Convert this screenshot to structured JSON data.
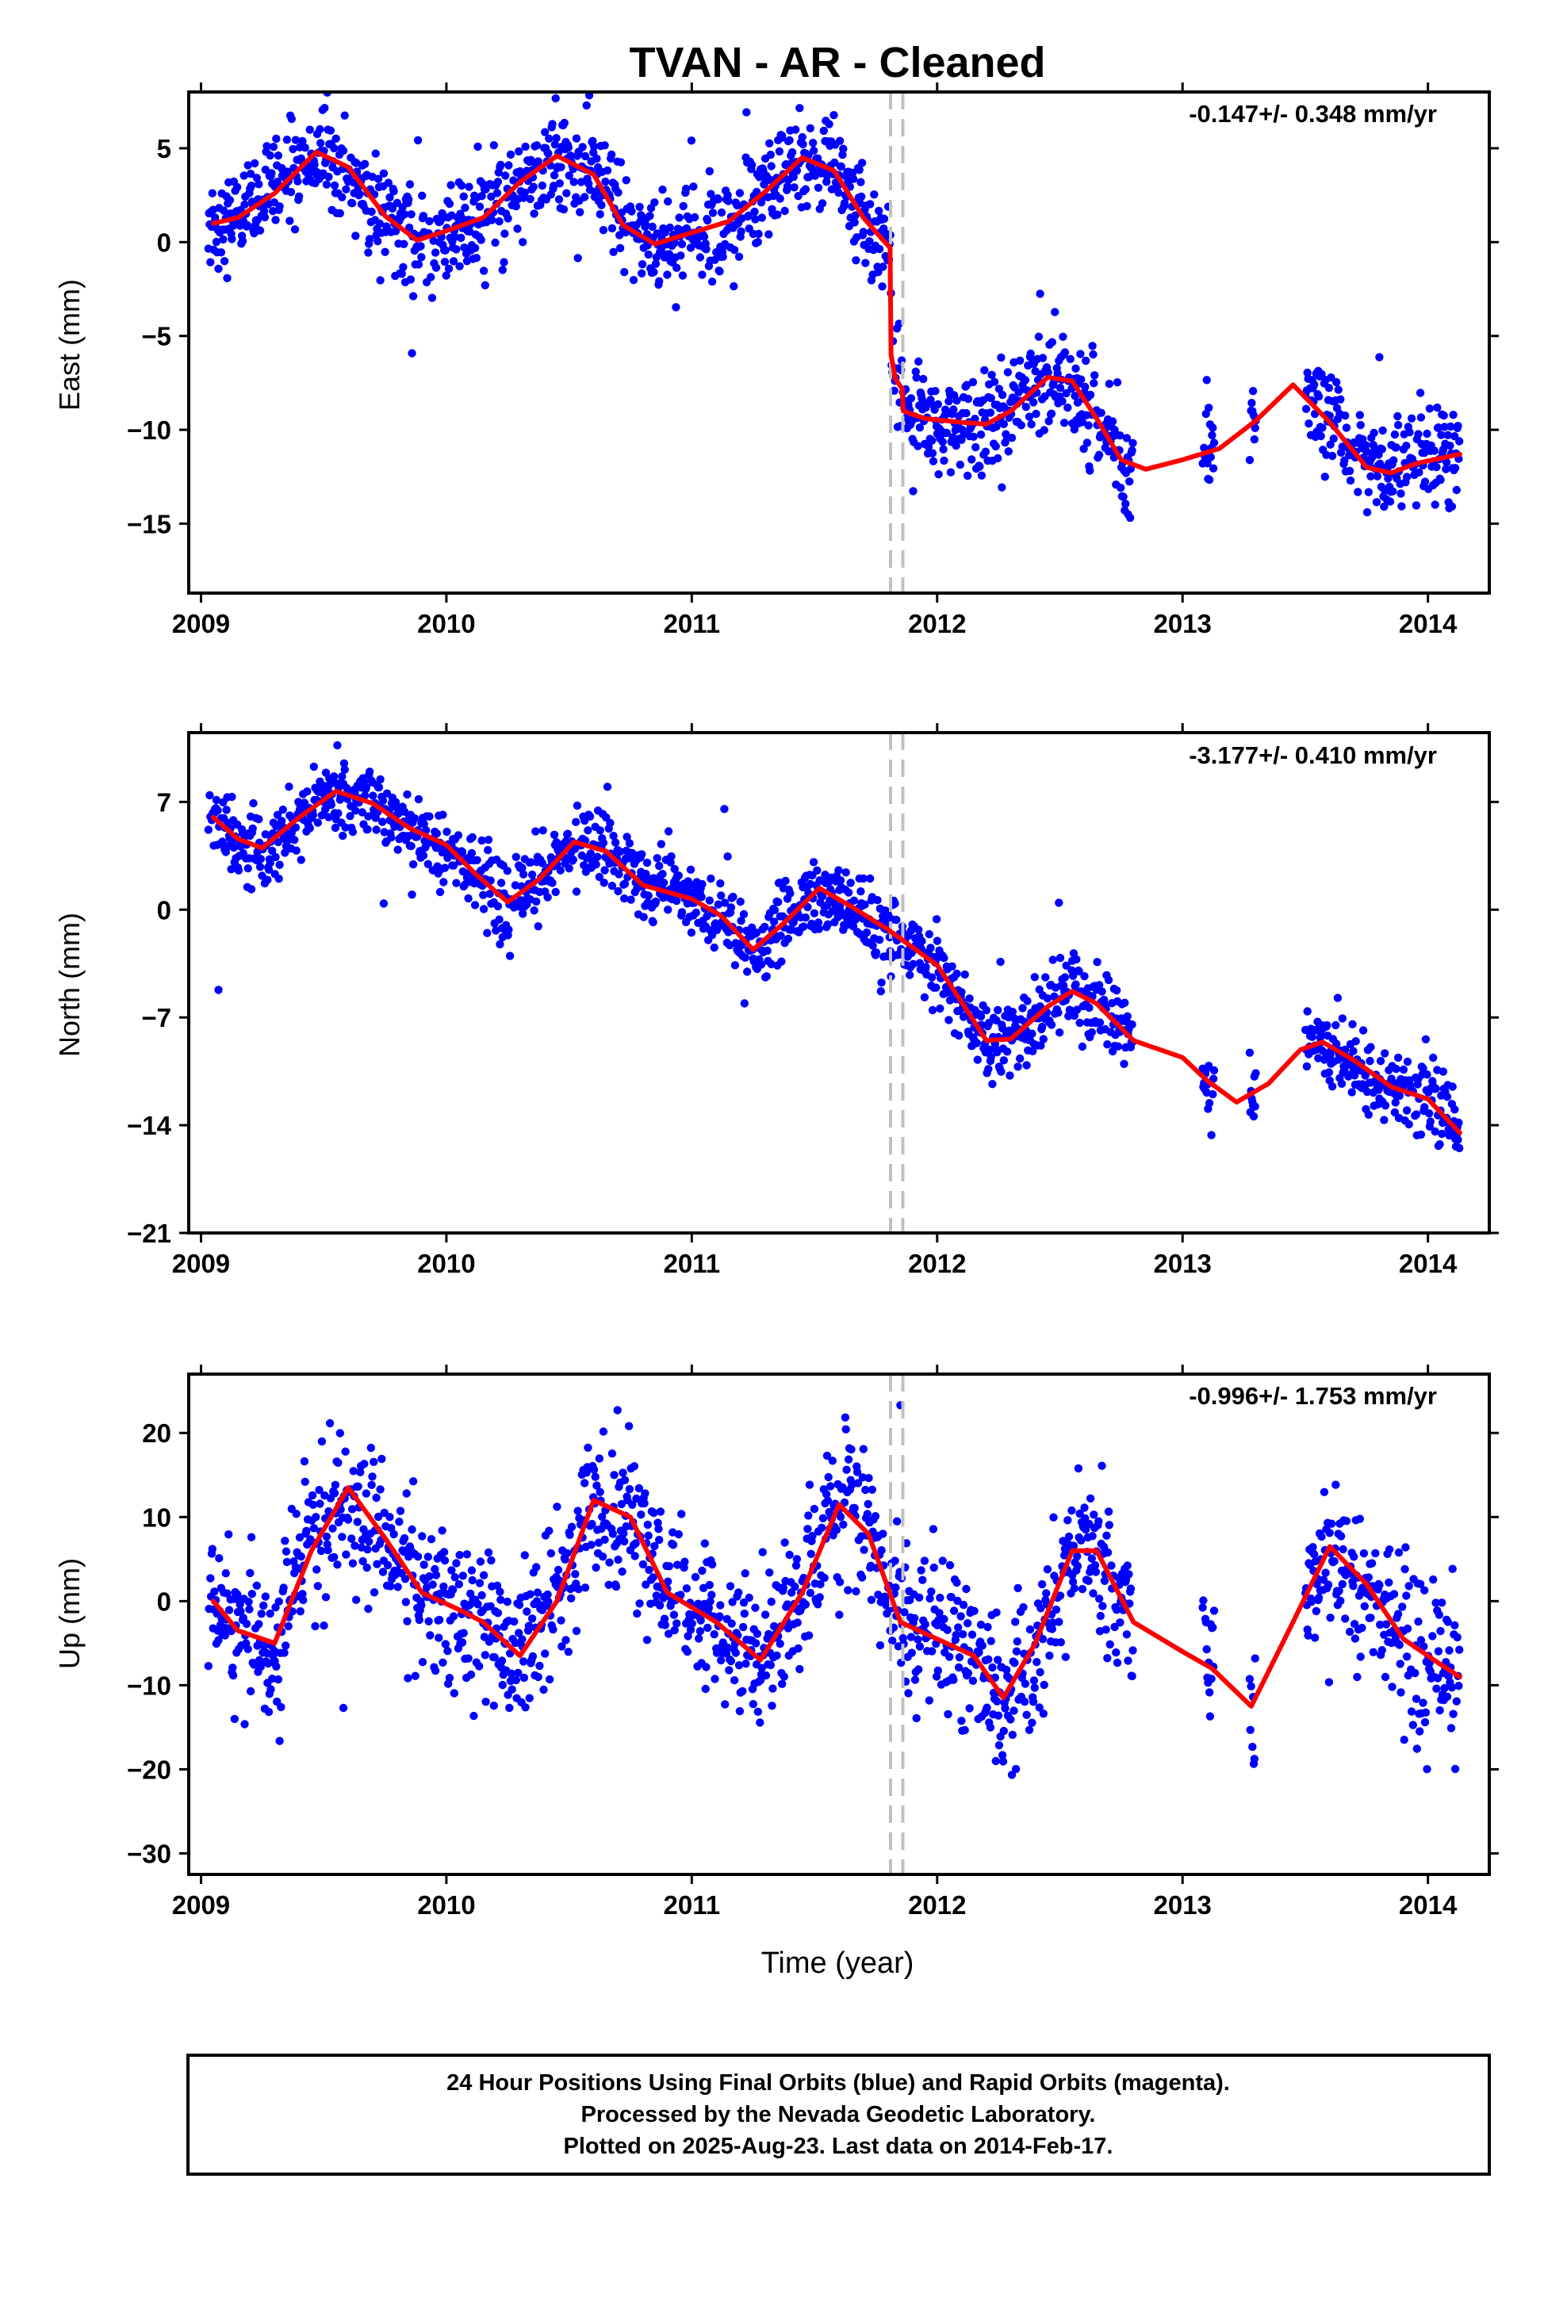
{
  "title": "TVAN  - AR - Cleaned",
  "xlabel": "Time (year)",
  "caption": [
    "24 Hour Positions Using Final Orbits (blue) and Rapid Orbits (magenta).",
    "Processed by the Nevada Geodetic Laboratory.",
    "Plotted on 2025-Aug-23. Last data on 2014-Feb-17."
  ],
  "colors": {
    "points": "#0000ff",
    "fit": "#ff0000",
    "steps": "#c0c0c0"
  },
  "chart_data": [
    {
      "type": "scatter",
      "ylabel": "East (mm)",
      "rate_label": "-0.147+/- 0.348 mm/yr",
      "xlim": [
        2008.95,
        2014.25
      ],
      "ylim": [
        -18.7,
        8.0
      ],
      "xticks": [
        2009,
        2010,
        2011,
        2012,
        2013,
        2014
      ],
      "yticks": [
        -15,
        -10,
        -5,
        0,
        5
      ],
      "ytick_labels": [
        "−15",
        "−10",
        "−5",
        "0",
        "5"
      ],
      "steps": [
        2011.81,
        2011.86
      ],
      "series": [
        {
          "kind": "scatter-daily",
          "x_range": [
            2009.03,
            2014.13
          ],
          "sample_model": {
            "amplitude": 2.0,
            "noise": 1.3,
            "gaps": [
              [
                2012.8,
                2013.08
              ],
              [
                2013.13,
                2013.27
              ],
              [
                2013.3,
                2013.5
              ]
            ]
          }
        },
        {
          "kind": "fit-line",
          "x": [
            2009.05,
            2009.15,
            2009.3,
            2009.47,
            2009.6,
            2009.75,
            2009.88,
            2010.0,
            2010.15,
            2010.3,
            2010.45,
            2010.6,
            2010.72,
            2010.85,
            2011.0,
            2011.15,
            2011.3,
            2011.45,
            2011.58,
            2011.7,
            2011.78,
            2011.808,
            2011.812,
            2011.83,
            2011.857,
            2011.862,
            2011.95,
            2012.1,
            2012.2,
            2012.3,
            2012.45,
            2012.55,
            2012.65,
            2012.75,
            2012.85,
            2013.0,
            2013.15,
            2013.3,
            2013.45,
            2013.6,
            2013.75,
            2013.85,
            2013.95,
            2014.13
          ],
          "y": [
            1.0,
            1.3,
            2.6,
            4.8,
            4.0,
            1.4,
            0.1,
            0.6,
            1.3,
            3.2,
            4.6,
            3.6,
            0.9,
            -0.1,
            0.5,
            1.1,
            2.7,
            4.5,
            3.8,
            1.3,
            0.1,
            -0.3,
            -6.0,
            -7.3,
            -7.8,
            -9.0,
            -9.4,
            -9.6,
            -9.7,
            -9.0,
            -7.2,
            -7.4,
            -9.4,
            -11.6,
            -12.1,
            -11.6,
            -11.0,
            -9.5,
            -7.6,
            -9.6,
            -12.0,
            -12.3,
            -11.8,
            -11.3
          ]
        }
      ]
    },
    {
      "type": "scatter",
      "ylabel": "North (mm)",
      "rate_label": "-3.177+/- 0.410 mm/yr",
      "xlim": [
        2008.95,
        2014.25
      ],
      "ylim": [
        -21.0,
        11.5
      ],
      "xticks": [
        2009,
        2010,
        2011,
        2012,
        2013,
        2014
      ],
      "yticks": [
        -21,
        -14,
        -7,
        0,
        7
      ],
      "ytick_labels": [
        "−21",
        "−14",
        "−7",
        "0",
        "7"
      ],
      "steps": [
        2011.81,
        2011.86
      ],
      "series": [
        {
          "kind": "scatter-daily",
          "x_range": [
            2009.03,
            2014.13
          ],
          "sample_model": {
            "amplitude": 2.0,
            "noise": 1.2,
            "gaps": [
              [
                2012.8,
                2013.08
              ],
              [
                2013.13,
                2013.27
              ],
              [
                2013.3,
                2013.5
              ]
            ]
          }
        },
        {
          "kind": "fit-line",
          "x": [
            2009.05,
            2009.15,
            2009.25,
            2009.4,
            2009.55,
            2009.7,
            2009.85,
            2010.0,
            2010.12,
            2010.25,
            2010.38,
            2010.52,
            2010.65,
            2010.8,
            2011.0,
            2011.12,
            2011.25,
            2011.38,
            2011.52,
            2011.65,
            2011.8,
            2012.0,
            2012.1,
            2012.2,
            2012.3,
            2012.45,
            2012.55,
            2012.65,
            2012.8,
            2013.0,
            2013.1,
            2013.22,
            2013.35,
            2013.48,
            2013.57,
            2013.7,
            2013.85,
            2014.0,
            2014.13
          ],
          "y": [
            6.0,
            4.6,
            4.0,
            6.0,
            7.7,
            6.9,
            5.3,
            4.2,
            2.3,
            0.5,
            2.0,
            4.4,
            3.8,
            1.6,
            0.7,
            -0.4,
            -2.6,
            -0.8,
            1.4,
            0.2,
            -1.3,
            -3.6,
            -6.0,
            -8.5,
            -8.4,
            -6.3,
            -5.3,
            -6.1,
            -8.5,
            -9.6,
            -11.1,
            -12.5,
            -11.3,
            -9.1,
            -8.6,
            -9.8,
            -11.5,
            -12.3,
            -14.5
          ]
        }
      ]
    },
    {
      "type": "scatter",
      "ylabel": "Up (mm)",
      "rate_label": "-0.996+/- 1.753 mm/yr",
      "xlim": [
        2008.95,
        2014.25
      ],
      "ylim": [
        -32.5,
        27.0
      ],
      "xticks": [
        2009,
        2010,
        2011,
        2012,
        2013,
        2014
      ],
      "yticks": [
        -30,
        -20,
        -10,
        0,
        10,
        20
      ],
      "ytick_labels": [
        "−30",
        "−20",
        "−10",
        "0",
        "10",
        "20"
      ],
      "steps": [
        2011.81,
        2011.86
      ],
      "series": [
        {
          "kind": "scatter-daily",
          "x_range": [
            2009.03,
            2014.13
          ],
          "sample_model": {
            "amplitude": 8.0,
            "noise": 4.5,
            "gaps": [
              [
                2012.8,
                2013.08
              ],
              [
                2013.13,
                2013.27
              ],
              [
                2013.3,
                2013.5
              ]
            ]
          }
        },
        {
          "kind": "fit-line",
          "x": [
            2009.05,
            2009.15,
            2009.3,
            2009.45,
            2009.6,
            2009.75,
            2009.9,
            2010.05,
            2010.15,
            2010.3,
            2010.45,
            2010.6,
            2010.75,
            2010.9,
            2011.1,
            2011.28,
            2011.45,
            2011.6,
            2011.72,
            2011.85,
            2012.0,
            2012.15,
            2012.27,
            2012.4,
            2012.55,
            2012.65,
            2012.8,
            2013.0,
            2013.12,
            2013.28,
            2013.45,
            2013.6,
            2013.75,
            2013.9,
            2014.05,
            2014.13
          ],
          "y": [
            0.0,
            -3.5,
            -5.0,
            6.0,
            13.5,
            7.5,
            1.0,
            -1.0,
            -2.5,
            -6.5,
            0.0,
            12.0,
            10.0,
            1.0,
            -2.5,
            -7.0,
            1.0,
            11.5,
            8.0,
            -2.5,
            -4.5,
            -6.5,
            -11.5,
            -5.0,
            6.0,
            6.0,
            -2.5,
            -6.0,
            -8.0,
            -12.5,
            -2.5,
            6.5,
            2.0,
            -4.5,
            -7.5,
            -9.0
          ]
        }
      ]
    }
  ]
}
